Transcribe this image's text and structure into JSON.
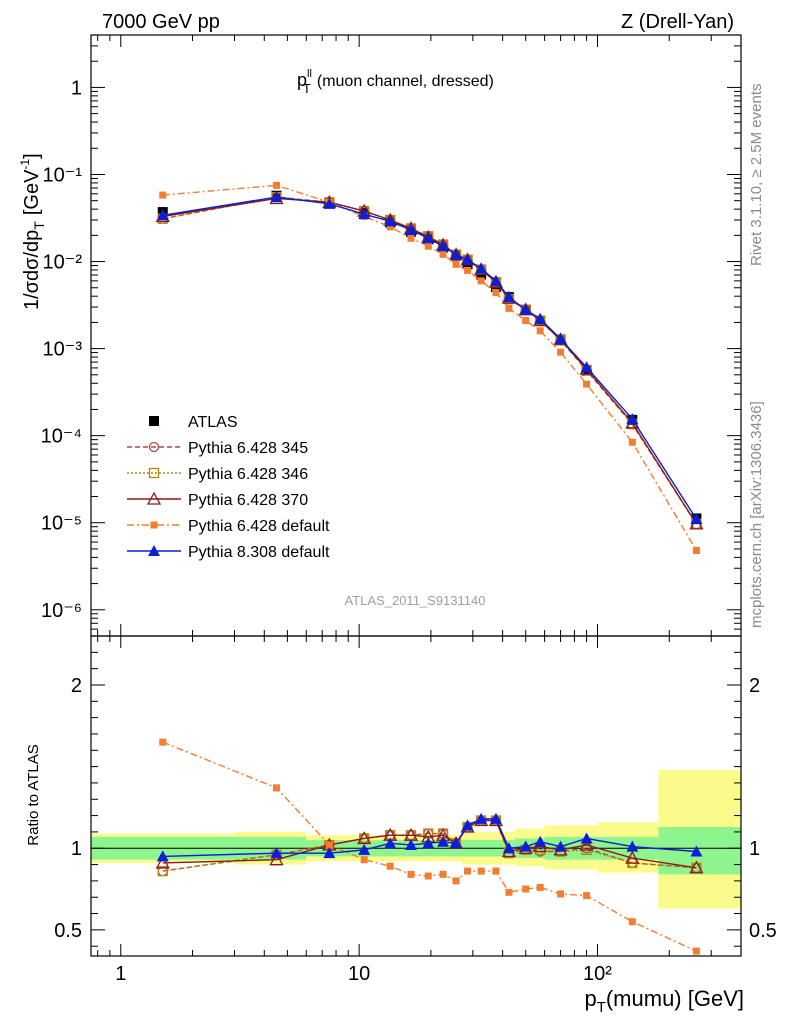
{
  "header": {
    "left": "7000 GeV pp",
    "right": "Z (Drell-Yan)"
  },
  "plot_title": {
    "main": "p",
    "sup": "ll",
    "sub": "T",
    "rest": "(muon channel, dressed)"
  },
  "ylabel_main": {
    "pre": "1/σdσ/dp",
    "sub": "T",
    "unit_pre": "[GeV",
    "unit_sup": "-1",
    "unit_post": "]"
  },
  "ylabel_ratio": "Ratio to ATLAS",
  "xlabel": {
    "pre": "p",
    "sub": "T",
    "post": "(mumu) [GeV]"
  },
  "analysis_id": "ATLAS_2011_S9131140",
  "side_labels": {
    "rivet": "Rivet 3.1.10, ≥ 2.5M events",
    "mcplots": "mcplots.cern.ch [arXiv:1306.3436]"
  },
  "colors": {
    "atlas": "#000000",
    "p345": "#b5474a",
    "p346": "#b8860b",
    "p370": "#8b1a1a",
    "pdef": "#f47d30",
    "p8": "#0a1fd6",
    "band_inner": "#8ef58e",
    "band_outer": "#fbfb8c"
  },
  "chart_data": {
    "type": "line",
    "x": [
      1.5,
      4.5,
      7.5,
      10.5,
      13.5,
      16.5,
      19.5,
      22.5,
      25.5,
      28.5,
      32.5,
      37.5,
      42.5,
      50,
      57.5,
      70,
      90,
      140,
      260
    ],
    "xscale": "log",
    "xlim": [
      0.75,
      400
    ],
    "xticks": [
      1,
      10,
      100
    ],
    "xtick_labels": [
      "1",
      "10",
      "10²"
    ],
    "main_panel": {
      "yscale": "log",
      "ylim": [
        5e-07,
        4
      ],
      "yticks": [
        1e-06,
        1e-05,
        0.0001,
        0.001,
        0.01,
        0.1,
        1
      ],
      "ytick_labels": [
        "10⁻⁶",
        "10⁻⁵",
        "10⁻⁴",
        "10⁻³",
        "10⁻²",
        "10⁻¹",
        "1"
      ],
      "series": [
        {
          "name": "ATLAS",
          "values": [
            0.037,
            0.057,
            0.047,
            0.036,
            0.028,
            0.022,
            0.018,
            0.0145,
            0.0117,
            0.0093,
            0.0071,
            0.0051,
            0.0039,
            0.0028,
            0.0021,
            0.00127,
            0.00056,
            0.000152,
            1.12e-05
          ]
        },
        {
          "name": "Pythia 6.428 345",
          "values": [
            0.031,
            0.055,
            0.048,
            0.038,
            0.03,
            0.024,
            0.0195,
            0.0157,
            0.012,
            0.0105,
            0.0081,
            0.0058,
            0.0037,
            0.0028,
            0.0021,
            0.00125,
            0.00056,
            0.000135,
            9.6e-06
          ]
        },
        {
          "name": "Pythia 6.428 346",
          "values": [
            0.031,
            0.055,
            0.048,
            0.038,
            0.03,
            0.024,
            0.0195,
            0.0157,
            0.012,
            0.0105,
            0.0081,
            0.0058,
            0.0037,
            0.0028,
            0.0021,
            0.00125,
            0.00057,
            0.000136,
            9.7e-06
          ]
        },
        {
          "name": "Pythia 6.428 370",
          "values": [
            0.033,
            0.053,
            0.048,
            0.038,
            0.03,
            0.024,
            0.019,
            0.0155,
            0.012,
            0.0105,
            0.0081,
            0.0058,
            0.0038,
            0.0028,
            0.0021,
            0.00127,
            0.00058,
            0.00014,
            9.7e-06
          ]
        },
        {
          "name": "Pythia 6.428 default",
          "values": [
            0.058,
            0.075,
            0.048,
            0.033,
            0.025,
            0.0185,
            0.015,
            0.0121,
            0.0093,
            0.0079,
            0.006,
            0.0044,
            0.0029,
            0.0021,
            0.0016,
            0.00091,
            0.00039,
            8.4e-05,
            4.8e-06
          ]
        },
        {
          "name": "Pythia 8.308 default",
          "values": [
            0.034,
            0.055,
            0.046,
            0.035,
            0.029,
            0.023,
            0.0185,
            0.015,
            0.012,
            0.0105,
            0.0083,
            0.006,
            0.0039,
            0.0028,
            0.0022,
            0.00129,
            0.00061,
            0.000155,
            1.1e-05
          ]
        }
      ]
    },
    "ratio_panel": {
      "yscale": "linear",
      "ylim": [
        0.34,
        2.3
      ],
      "yticks": [
        0.5,
        1,
        2
      ],
      "ytick_labels": [
        "0.5",
        "1",
        "2"
      ],
      "series": [
        {
          "name": "Pythia 6.428 345",
          "values": [
            0.86,
            0.96,
            1.02,
            1.06,
            1.08,
            1.08,
            1.09,
            1.09,
            1.03,
            1.13,
            1.17,
            1.17,
            0.97,
            0.99,
            0.98,
            0.98,
            1.0,
            0.91,
            0.88
          ]
        },
        {
          "name": "Pythia 6.428 346",
          "values": [
            0.86,
            0.96,
            1.02,
            1.06,
            1.08,
            1.08,
            1.09,
            1.09,
            1.03,
            1.13,
            1.17,
            1.17,
            0.97,
            0.99,
            0.99,
            0.98,
            0.99,
            0.91,
            0.88
          ]
        },
        {
          "name": "Pythia 6.428 370",
          "values": [
            0.91,
            0.93,
            1.02,
            1.06,
            1.08,
            1.08,
            1.07,
            1.08,
            1.03,
            1.13,
            1.17,
            1.17,
            0.98,
            1.0,
            1.01,
            0.99,
            1.02,
            0.94,
            0.88
          ]
        },
        {
          "name": "Pythia 6.428 default",
          "values": [
            1.65,
            1.37,
            1.02,
            0.93,
            0.89,
            0.84,
            0.83,
            0.84,
            0.8,
            0.86,
            0.86,
            0.86,
            0.73,
            0.75,
            0.76,
            0.72,
            0.71,
            0.55,
            0.37
          ]
        },
        {
          "name": "Pythia 8.308 default",
          "values": [
            0.95,
            0.97,
            0.97,
            0.99,
            1.03,
            1.02,
            1.03,
            1.04,
            1.03,
            1.14,
            1.18,
            1.18,
            1.0,
            1.01,
            1.04,
            1.01,
            1.06,
            1.01,
            0.98
          ]
        }
      ]
    },
    "legend": {
      "placement": "bottom-left",
      "entries": [
        "ATLAS",
        "Pythia 6.428 345",
        "Pythia 6.428 346",
        "Pythia 6.428 370",
        "Pythia 6.428 default",
        "Pythia 8.308 default"
      ]
    },
    "uncertainty_band": {
      "bins": [
        [
          0.75,
          3
        ],
        [
          3,
          6
        ],
        [
          6,
          12
        ],
        [
          12,
          15
        ],
        [
          15,
          27
        ],
        [
          27,
          45
        ],
        [
          45,
          60
        ],
        [
          60,
          80
        ],
        [
          80,
          100
        ],
        [
          100,
          180
        ],
        [
          180,
          400
        ]
      ],
      "inner": [
        [
          0.93,
          1.07
        ],
        [
          0.93,
          1.07
        ],
        [
          0.95,
          1.05
        ],
        [
          0.95,
          1.05
        ],
        [
          0.95,
          1.05
        ],
        [
          0.95,
          1.05
        ],
        [
          0.94,
          1.06
        ],
        [
          0.93,
          1.07
        ],
        [
          0.93,
          1.07
        ],
        [
          0.93,
          1.07
        ],
        [
          0.84,
          1.13
        ]
      ],
      "outer": [
        [
          0.91,
          1.09
        ],
        [
          0.9,
          1.1
        ],
        [
          0.92,
          1.08
        ],
        [
          0.92,
          1.08
        ],
        [
          0.92,
          1.08
        ],
        [
          0.9,
          1.1
        ],
        [
          0.89,
          1.12
        ],
        [
          0.87,
          1.14
        ],
        [
          0.87,
          1.14
        ],
        [
          0.85,
          1.16
        ],
        [
          0.63,
          1.48
        ]
      ]
    }
  }
}
